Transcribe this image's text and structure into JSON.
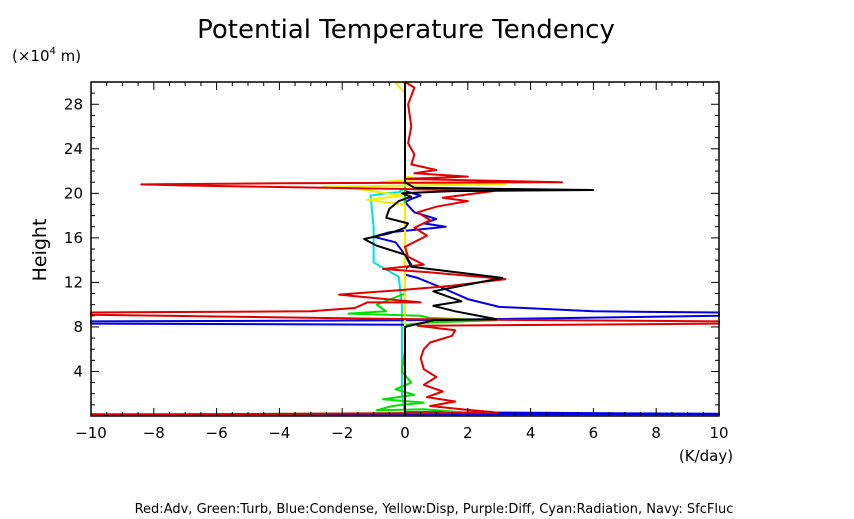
{
  "chart_data": {
    "type": "line",
    "title": "Potential Temperature Tendency",
    "ylabel": "Height",
    "yunit_prefix": "(×10",
    "yunit_exp": "4",
    "yunit_suffix": " m)",
    "xlabel": "(K/day)",
    "xlim": [
      -10,
      10
    ],
    "ylim": [
      0,
      30
    ],
    "xticks": [
      -10,
      -8,
      -6,
      -4,
      -2,
      0,
      2,
      4,
      6,
      8,
      10
    ],
    "xtick_labels": [
      "−10",
      "−8",
      "−6",
      "−4",
      "−2",
      "0",
      "2",
      "4",
      "6",
      "8",
      "10"
    ],
    "yticks": [
      4,
      8,
      12,
      16,
      20,
      24,
      28
    ],
    "ytick_labels": [
      "4",
      "8",
      "12",
      "16",
      "20",
      "24",
      "28"
    ],
    "legend_caption": "Red:Adv, Green:Turb, Blue:Condense, Yellow:Disp, Purple:Diff, Cyan:Radiation, Navy: SfcFluc",
    "series": [
      {
        "key": "radiation",
        "color": "#00e0e0",
        "points": [
          [
            0,
            0.1
          ],
          [
            -0.1,
            2
          ],
          [
            -0.1,
            6
          ],
          [
            -0.1,
            10
          ],
          [
            -0.2,
            12.5
          ],
          [
            -1.0,
            13.8
          ],
          [
            -1.0,
            17
          ],
          [
            -1.1,
            19.8
          ],
          [
            -0.6,
            20.0
          ],
          [
            -0.2,
            20.1
          ],
          [
            0,
            20.5
          ],
          [
            0,
            30
          ]
        ]
      },
      {
        "key": "condense",
        "color": "#0000e0",
        "points": [
          [
            -10,
            0.15
          ],
          [
            10,
            0.15
          ],
          [
            10,
            0.2
          ],
          [
            0,
            0.35
          ],
          [
            0,
            8.2
          ],
          [
            -10,
            8.3
          ],
          [
            -10,
            8.5
          ],
          [
            0.1,
            8.6
          ],
          [
            10,
            9.0
          ],
          [
            10,
            9.3
          ],
          [
            6,
            9.4
          ],
          [
            3,
            9.8
          ],
          [
            2,
            10.5
          ],
          [
            1.2,
            11.5
          ],
          [
            0.4,
            12.4
          ],
          [
            0,
            12.7
          ],
          [
            0,
            13.2
          ],
          [
            0.2,
            13.6
          ],
          [
            0,
            14.5
          ],
          [
            -0.3,
            15.6
          ],
          [
            -1.0,
            16.1
          ],
          [
            -0.5,
            16.5
          ],
          [
            0.6,
            16.8
          ],
          [
            1.3,
            17.0
          ],
          [
            0.6,
            17.3
          ],
          [
            1.0,
            17.7
          ],
          [
            0.3,
            18.3
          ],
          [
            0,
            19.2
          ],
          [
            0.2,
            19.5
          ],
          [
            0.5,
            19.8
          ],
          [
            0,
            20.2
          ],
          [
            0,
            30
          ]
        ]
      },
      {
        "key": "turbulence",
        "color": "#00e000",
        "points": [
          [
            -10,
            0.1
          ],
          [
            2,
            0.3
          ],
          [
            0.6,
            0.6
          ],
          [
            -0.9,
            0.5
          ],
          [
            -0.4,
            0.9
          ],
          [
            0.6,
            1.2
          ],
          [
            -0.7,
            1.5
          ],
          [
            0.3,
            1.9
          ],
          [
            -0.3,
            2.4
          ],
          [
            0.2,
            3
          ],
          [
            -0.1,
            4
          ],
          [
            0,
            6
          ],
          [
            0,
            8.2
          ],
          [
            0.8,
            8.4
          ],
          [
            2.9,
            8.6
          ],
          [
            0.8,
            8.8
          ],
          [
            0.5,
            9.0
          ],
          [
            -1.8,
            9.2
          ],
          [
            -0.6,
            9.4
          ],
          [
            -0.9,
            10.0
          ],
          [
            0,
            11.0
          ],
          [
            0,
            30
          ]
        ]
      },
      {
        "key": "dissipation",
        "color": "#f0f000",
        "points": [
          [
            0,
            0.3
          ],
          [
            0,
            19.0
          ],
          [
            -1.2,
            19.4
          ],
          [
            -0.1,
            19.8
          ],
          [
            -1.5,
            20.4
          ],
          [
            -2.6,
            20.6
          ],
          [
            0.2,
            20.7
          ],
          [
            3.2,
            20.8
          ],
          [
            -0.8,
            21.0
          ],
          [
            0.5,
            21.3
          ],
          [
            0,
            21.5
          ],
          [
            0,
            29
          ],
          [
            -0.3,
            29.9
          ],
          [
            0.2,
            30
          ]
        ]
      },
      {
        "key": "advection",
        "color": "#e00000",
        "points": [
          [
            -10,
            0.1
          ],
          [
            3,
            0.3
          ],
          [
            1.8,
            0.6
          ],
          [
            0.8,
            0.9
          ],
          [
            1.6,
            1.3
          ],
          [
            0.7,
            1.7
          ],
          [
            1.2,
            2.2
          ],
          [
            0.6,
            2.8
          ],
          [
            1.0,
            3.5
          ],
          [
            0.6,
            4.2
          ],
          [
            0.5,
            5.2
          ],
          [
            0.6,
            6.0
          ],
          [
            0.8,
            6.6
          ],
          [
            1.5,
            7.2
          ],
          [
            1.6,
            7.7
          ],
          [
            0.4,
            8.1
          ],
          [
            10,
            8.3
          ],
          [
            10,
            8.5
          ],
          [
            0.1,
            8.7
          ],
          [
            -10,
            9.1
          ],
          [
            -10,
            9.3
          ],
          [
            -3,
            9.4
          ],
          [
            -1.6,
            9.7
          ],
          [
            -1.2,
            10.2
          ],
          [
            0.5,
            10.2
          ],
          [
            -2.1,
            10.9
          ],
          [
            -0.2,
            11.3
          ],
          [
            1.5,
            11.7
          ],
          [
            3.2,
            12.3
          ],
          [
            0.8,
            12.9
          ],
          [
            -0.7,
            13.2
          ],
          [
            0.6,
            13.6
          ],
          [
            0.1,
            14.3
          ],
          [
            0,
            15.2
          ],
          [
            0.7,
            16.2
          ],
          [
            0.3,
            16.9
          ],
          [
            0.8,
            17.6
          ],
          [
            0.4,
            18.3
          ],
          [
            1.0,
            18.8
          ],
          [
            2.0,
            19.3
          ],
          [
            1.2,
            19.6
          ],
          [
            2.8,
            20.2
          ],
          [
            -0.2,
            20.4
          ],
          [
            -7,
            20.7
          ],
          [
            -8.4,
            20.8
          ],
          [
            -4,
            20.9
          ],
          [
            5,
            21.0
          ],
          [
            0,
            21.3
          ],
          [
            2,
            21.5
          ],
          [
            0.3,
            21.8
          ],
          [
            1.0,
            22.1
          ],
          [
            0.2,
            22.6
          ],
          [
            0.3,
            23.5
          ],
          [
            0.1,
            24.5
          ],
          [
            0.2,
            26
          ],
          [
            0.1,
            28
          ],
          [
            0.3,
            29.5
          ],
          [
            0,
            30
          ]
        ]
      },
      {
        "key": "total",
        "color": "#000000",
        "points": [
          [
            0,
            0.1
          ],
          [
            0,
            8.0
          ],
          [
            0.9,
            8.6
          ],
          [
            2.9,
            8.7
          ],
          [
            1.6,
            9.4
          ],
          [
            0.9,
            9.9
          ],
          [
            1.8,
            10.3
          ],
          [
            0.9,
            11.2
          ],
          [
            3.1,
            12.4
          ],
          [
            0.2,
            13.4
          ],
          [
            0,
            14.5
          ],
          [
            -0.9,
            15.3
          ],
          [
            -1.3,
            15.9
          ],
          [
            -0.5,
            16.4
          ],
          [
            0,
            16.9
          ],
          [
            0.1,
            17.3
          ],
          [
            -0.6,
            17.8
          ],
          [
            -0.5,
            18.6
          ],
          [
            -0.2,
            19.3
          ],
          [
            0.2,
            19.7
          ],
          [
            -0.1,
            20.0
          ],
          [
            1.5,
            20.2
          ],
          [
            6,
            20.3
          ],
          [
            0.3,
            20.5
          ],
          [
            0,
            21.0
          ],
          [
            0,
            30
          ]
        ]
      }
    ]
  }
}
